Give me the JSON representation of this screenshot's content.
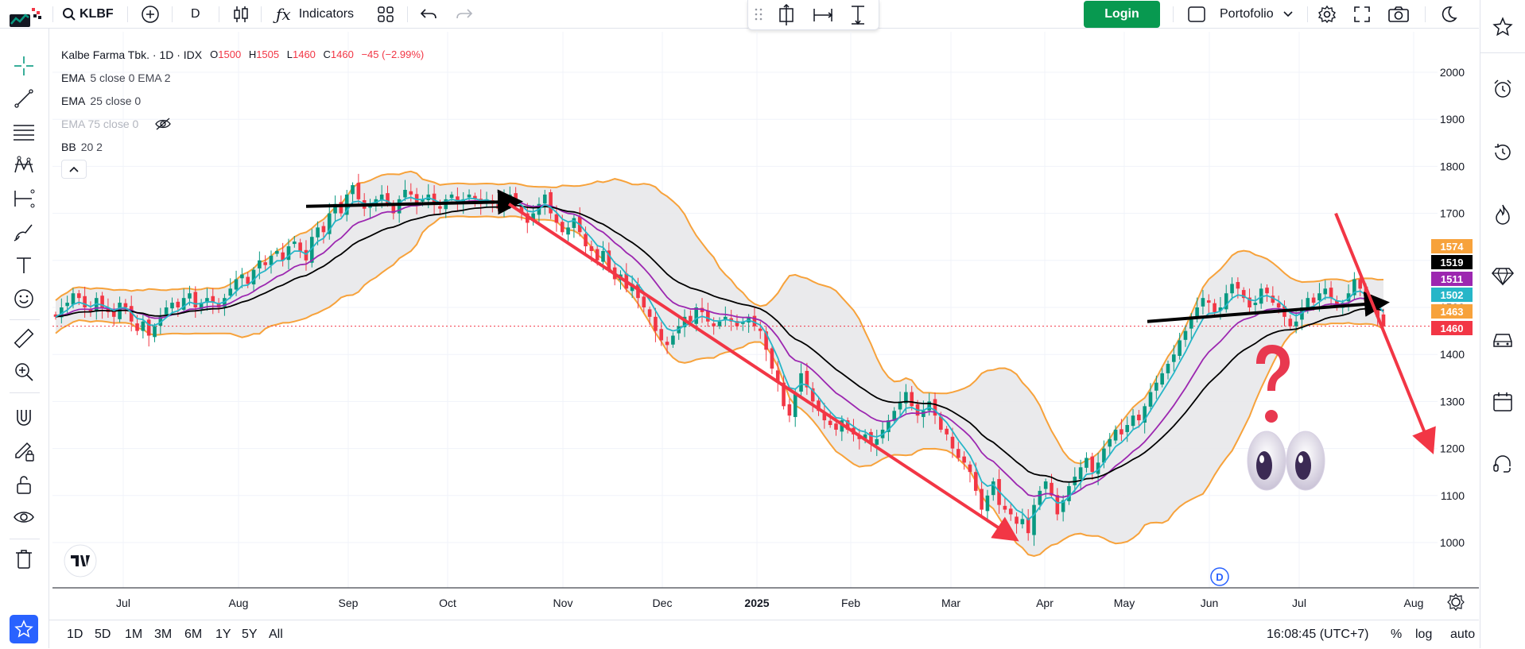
{
  "toolbar": {
    "symbol": "KLBF",
    "interval": "D",
    "indicators_label": "Indicators",
    "login_label": "Login",
    "portfolio_label": "Portofolio"
  },
  "legend": {
    "title": "Kalbe Farma Tbk. · 1D · IDX",
    "open_key": "O",
    "open": "1500",
    "high_key": "H",
    "high": "1505",
    "low_key": "L",
    "low": "1460",
    "close_key": "C",
    "close": "1460",
    "change": "−45 (−2.99%)",
    "ema1_name": "EMA",
    "ema1_params": "5 close 0 EMA 2",
    "ema2_name": "EMA",
    "ema2_params": "25 close 0",
    "ema3_label": "EMA 75 close 0",
    "bb_name": "BB",
    "bb_params": "20 2"
  },
  "bottom": {
    "ranges": [
      "1D",
      "5D",
      "1M",
      "3M",
      "6M",
      "1Y",
      "5Y",
      "All"
    ],
    "time": "16:08:45 (UTC+7)",
    "percent": "%",
    "log": "log",
    "auto": "auto"
  },
  "colors": {
    "up": "#089981",
    "down": "#F23645",
    "bb": "#F7A23B",
    "ema5": "#26B6C8",
    "ema25": "#000000",
    "ema_purple": "#9C27B0",
    "brand": "#089950"
  },
  "chart_data": {
    "type": "candlestick",
    "symbol": "KLBF",
    "ylim": [
      950,
      2050
    ],
    "y_ticks": [
      1000,
      1100,
      1200,
      1300,
      1400,
      1500,
      1600,
      1700,
      1800,
      1900,
      2000
    ],
    "x_ticks": [
      "Jul",
      "Aug",
      "Sep",
      "Oct",
      "Nov",
      "Dec",
      "2025",
      "Feb",
      "Mar",
      "Apr",
      "May",
      "Jun",
      "Jul",
      "Aug"
    ],
    "price_labels": [
      {
        "value": 1574,
        "color": "#F7A23B"
      },
      {
        "value": 1519,
        "color": "#000000"
      },
      {
        "value": 1511,
        "color": "#9C27B0"
      },
      {
        "value": 1502,
        "color": "#26B6C8"
      },
      {
        "value": 1463,
        "color": "#F7A23B"
      },
      {
        "value": 1460,
        "color": "#F23645"
      }
    ],
    "last_close": 1460,
    "closes": [
      1480,
      1500,
      1510,
      1530,
      1520,
      1500,
      1490,
      1520,
      1500,
      1490,
      1480,
      1510,
      1500,
      1470,
      1450,
      1470,
      1440,
      1460,
      1480,
      1500,
      1510,
      1500,
      1520,
      1530,
      1500,
      1510,
      1520,
      1510,
      1500,
      1520,
      1540,
      1560,
      1570,
      1550,
      1580,
      1600,
      1590,
      1610,
      1620,
      1600,
      1630,
      1640,
      1620,
      1600,
      1650,
      1670,
      1660,
      1700,
      1720,
      1700,
      1740,
      1760,
      1730,
      1710,
      1720,
      1730,
      1740,
      1720,
      1700,
      1730,
      1750,
      1740,
      1720,
      1730,
      1740,
      1720,
      1710,
      1730,
      1740,
      1720,
      1730,
      1740,
      1730,
      1720,
      1730,
      1720,
      1710,
      1730,
      1740,
      1720,
      1700,
      1680,
      1700,
      1720,
      1740,
      1700,
      1680,
      1660,
      1670,
      1690,
      1660,
      1630,
      1620,
      1600,
      1620,
      1580,
      1560,
      1570,
      1540,
      1550,
      1520,
      1500,
      1480,
      1450,
      1430,
      1420,
      1440,
      1460,
      1480,
      1470,
      1500,
      1490,
      1470,
      1460,
      1470,
      1480,
      1470,
      1460,
      1470,
      1480,
      1460,
      1450,
      1410,
      1370,
      1340,
      1290,
      1270,
      1320,
      1360,
      1330,
      1300,
      1280,
      1260,
      1250,
      1240,
      1260,
      1240,
      1230,
      1220,
      1230,
      1210,
      1220,
      1240,
      1260,
      1280,
      1300,
      1320,
      1290,
      1270,
      1280,
      1300,
      1270,
      1240,
      1230,
      1200,
      1180,
      1170,
      1150,
      1110,
      1070,
      1100,
      1130,
      1080,
      1070,
      1060,
      1040,
      1050,
      1020,
      1080,
      1110,
      1130,
      1100,
      1060,
      1090,
      1120,
      1140,
      1160,
      1180,
      1150,
      1170,
      1200,
      1220,
      1240,
      1230,
      1250,
      1270,
      1260,
      1290,
      1320,
      1340,
      1360,
      1380,
      1400,
      1430,
      1450,
      1480,
      1500,
      1520,
      1510,
      1490,
      1500,
      1530,
      1550,
      1540,
      1520,
      1500,
      1510,
      1540,
      1530,
      1510,
      1500,
      1480,
      1460,
      1470,
      1500,
      1520,
      1510,
      1530,
      1540,
      1520,
      1500,
      1510,
      1530,
      1560,
      1540,
      1510,
      1500,
      1480,
      1460
    ],
    "trendlines": [
      {
        "color": "#000000",
        "from": [
          "Sep",
          1715
        ],
        "to": [
          "Oct",
          1725
        ]
      },
      {
        "color": "#F23645",
        "from": [
          "Oct",
          1720
        ],
        "to": [
          "Mar",
          1010
        ]
      },
      {
        "color": "#000000",
        "from": [
          "May",
          1470
        ],
        "to": [
          "Jul",
          1510
        ]
      },
      {
        "color": "#F23645",
        "from": [
          "Jul",
          1700
        ],
        "to": [
          "Aug",
          1200
        ]
      }
    ]
  }
}
